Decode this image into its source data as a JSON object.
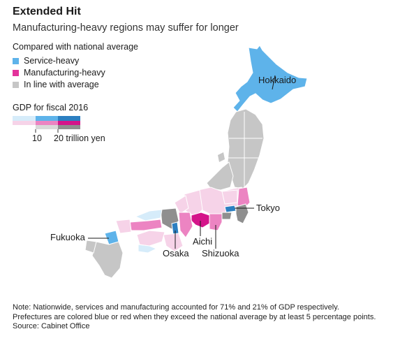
{
  "title": "Extended Hit",
  "subtitle": "Manufacturing-heavy regions may suffer for longer",
  "legend": {
    "heading": "Compared with national average",
    "items": [
      {
        "label": "Service-heavy",
        "color": "#5eb3ea"
      },
      {
        "label": "Manufacturing-heavy",
        "color": "#e3339b"
      },
      {
        "label": "In line with average",
        "color": "#c6c6c6"
      }
    ]
  },
  "gdp_scale": {
    "heading": "GDP for fiscal 2016",
    "label_10": "10",
    "label_20": "20 trillion yen"
  },
  "cities": {
    "hokkaido": "Hokkaido",
    "tokyo": "Tokyo",
    "fukuoka": "Fukuoka",
    "osaka": "Osaka",
    "aichi": "Aichi",
    "shizuoka": "Shizuoka"
  },
  "notes": {
    "line1": "Note: Nationwide, services and manufacturing accounted for 71% and 21% of GDP respectively.",
    "line2": "Prefectures are colored blue or red when they exceed the national average by at least 5 percentage points.",
    "source": "Source: Cabinet Office"
  }
}
